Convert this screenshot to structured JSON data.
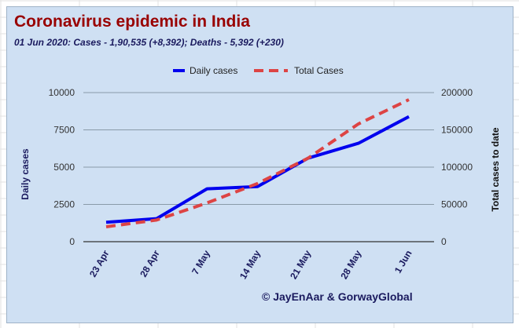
{
  "colors": {
    "background": "#cfe0f3",
    "title": "#990000",
    "daily_series": "#0000ee",
    "total_series": "#dd4444",
    "gridline": "#8a9aa8"
  },
  "credit": "© JayEnAar & GorwayGlobal",
  "chart_data": {
    "type": "line",
    "title": "Coronavirus epidemic in India",
    "subtitle": "01 Jun 2020: Cases - 1,90,535 (+8,392); Deaths - 5,392 (+230)",
    "categories": [
      "23 Apr",
      "28 Apr",
      "7 May",
      "14 May",
      "21 May",
      "28 May",
      "1 Jun"
    ],
    "series": [
      {
        "name": "Daily cases",
        "axis": "left",
        "style": "solid",
        "values": [
          1300,
          1550,
          3550,
          3700,
          5600,
          6600,
          8392
        ]
      },
      {
        "name": "Total Cases",
        "axis": "right",
        "style": "dashed",
        "values": [
          20000,
          29000,
          52000,
          78000,
          112000,
          158000,
          190535
        ]
      }
    ],
    "ylabel_left": "Daily cases",
    "ylabel_right": "Total  cases to date",
    "ylim_left": [
      0,
      10000
    ],
    "ylim_right": [
      0,
      200000
    ],
    "yticks_left": [
      "0",
      "2500",
      "5000",
      "7500",
      "10000"
    ],
    "yticks_right": [
      "0",
      "50000",
      "100000",
      "150000",
      "200000"
    ],
    "grid": true,
    "legend_position": "top"
  }
}
